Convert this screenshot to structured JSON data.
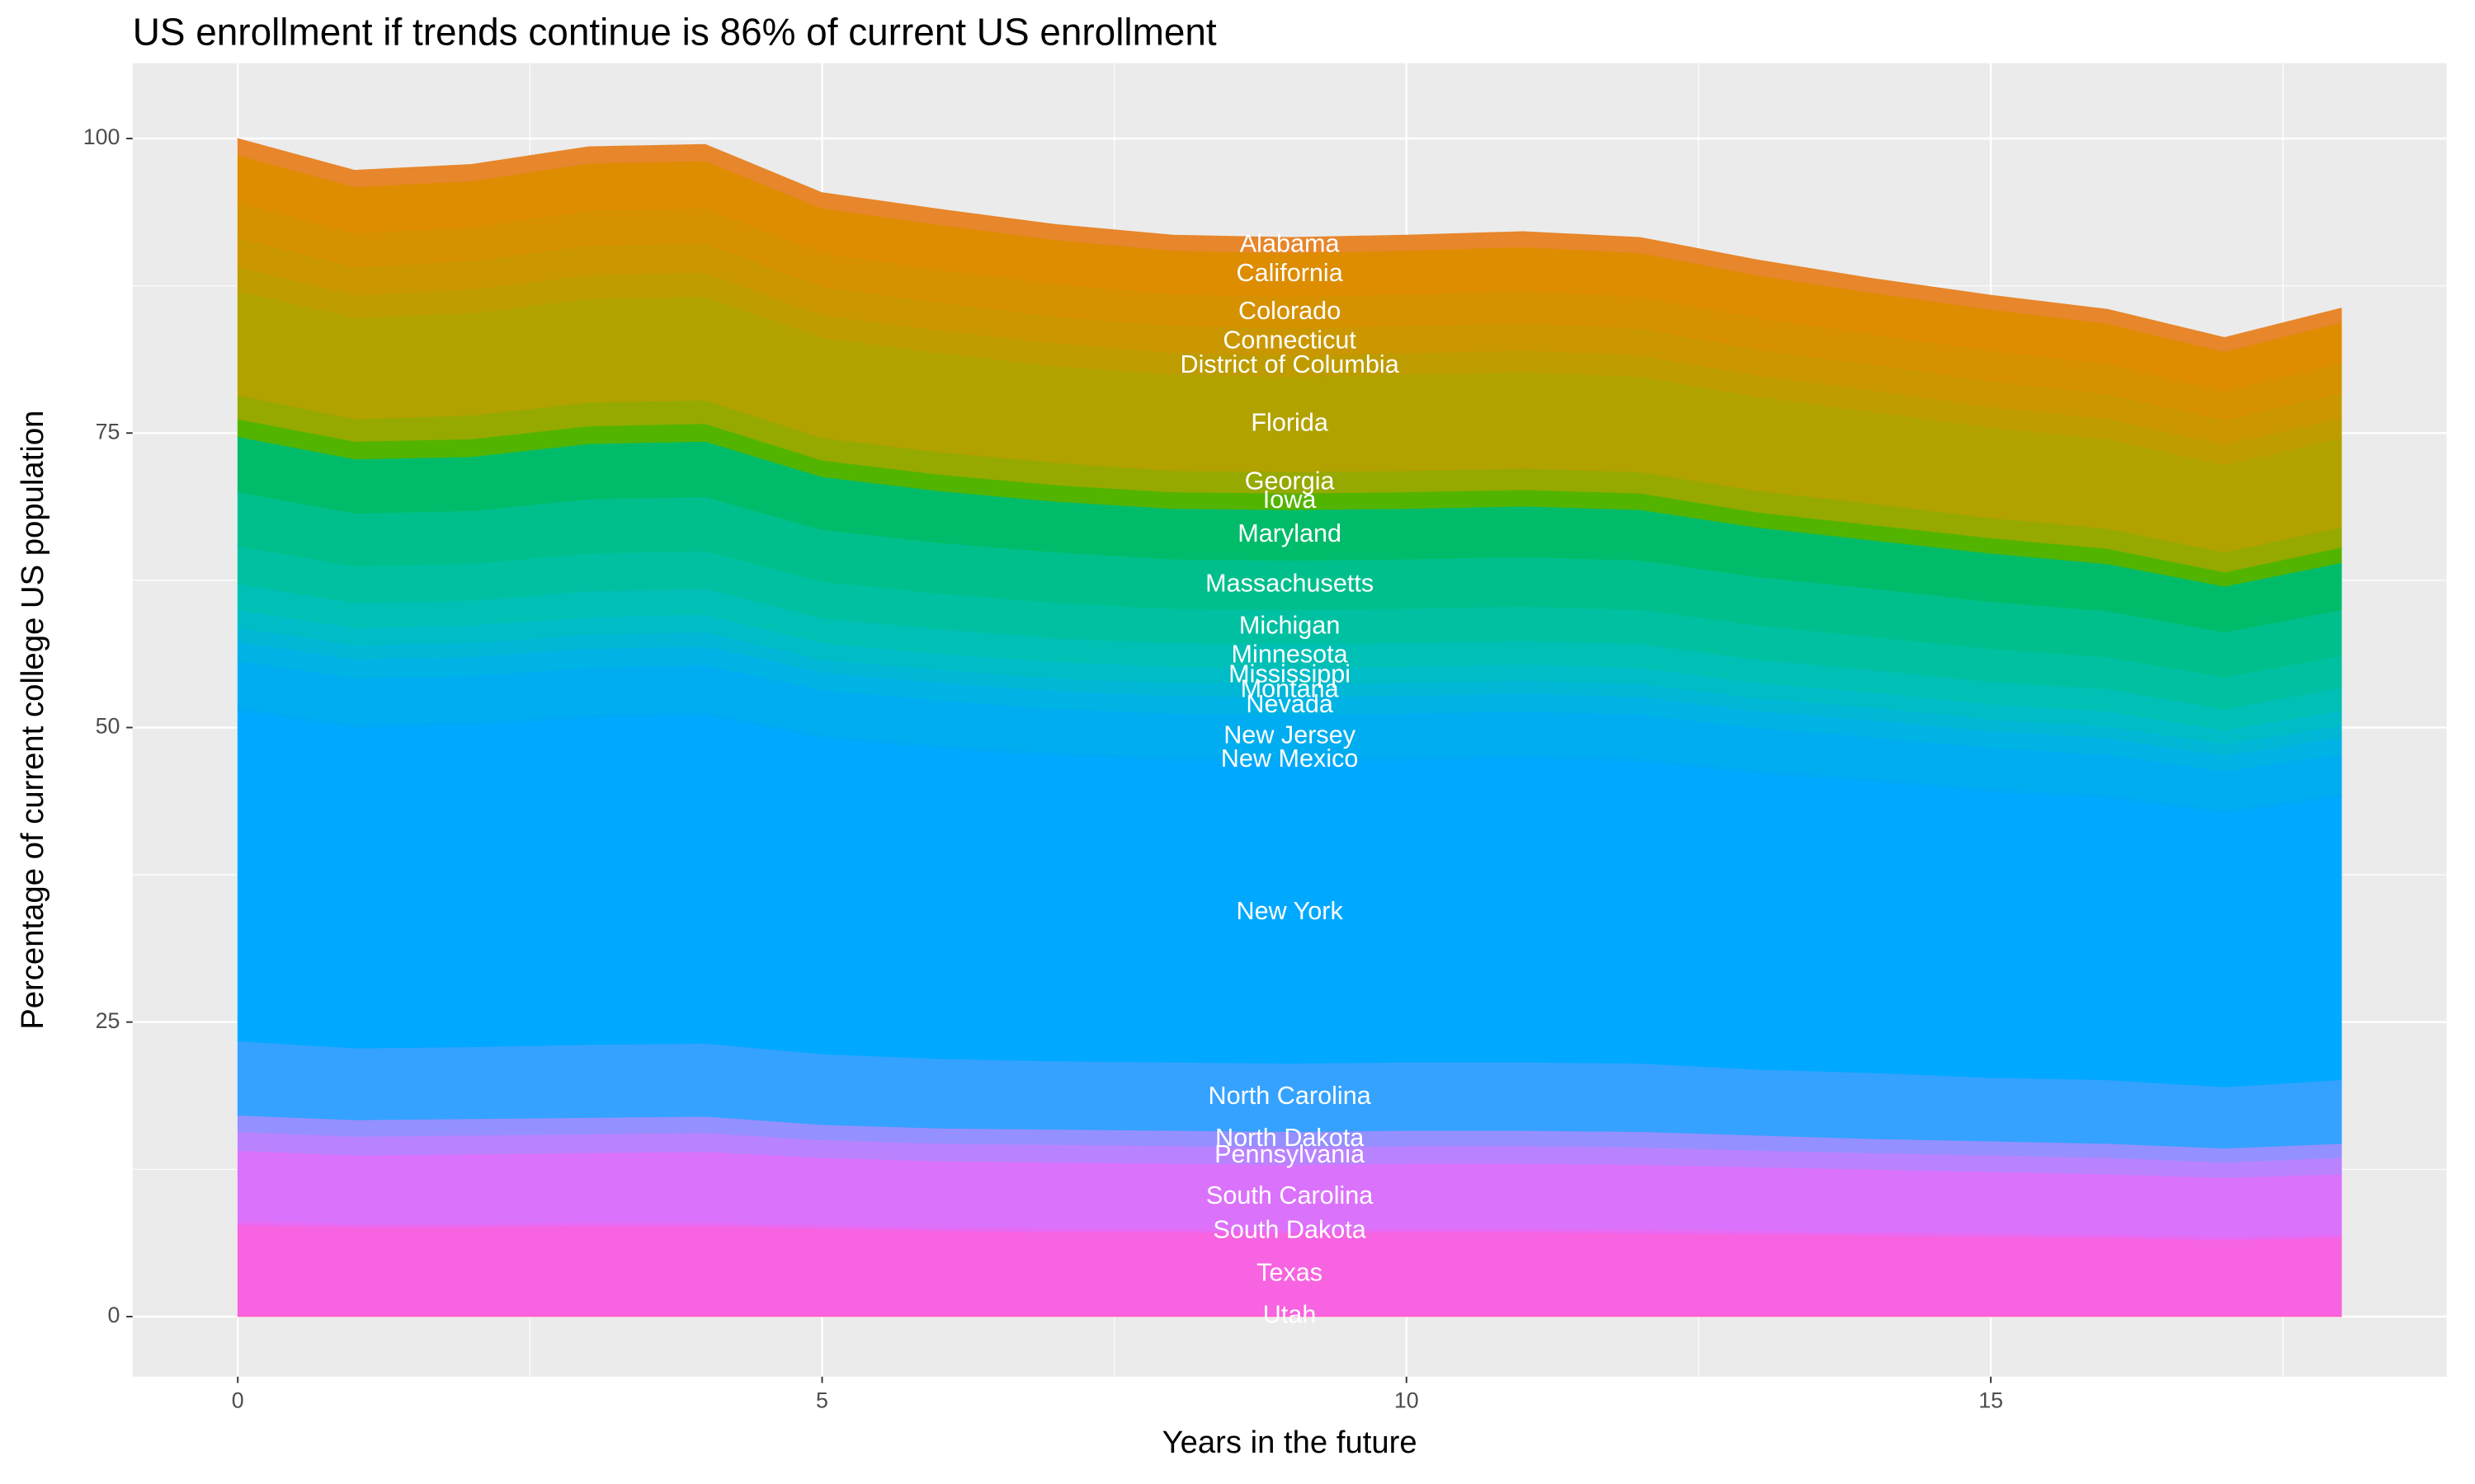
{
  "chart_data": {
    "type": "stacked_area",
    "title": "US enrollment if trends continue is 86% of current US enrollment",
    "x_label": "Years in the future",
    "y_label": "Percentage of current college US population",
    "x": [
      0,
      1,
      2,
      3,
      4,
      5,
      6,
      7,
      8,
      9,
      10,
      11,
      12,
      13,
      14,
      15,
      16,
      17,
      18
    ],
    "xlim": [
      -0.9,
      18.9
    ],
    "xticks": [
      0,
      5,
      10,
      15
    ],
    "ylim": [
      -5.1,
      106.4
    ],
    "yticks": [
      0,
      25,
      50,
      75,
      100
    ],
    "grid": true,
    "series": [
      {
        "name": "Utah",
        "color": "#FF62BC",
        "values": [
          0.1,
          0.1,
          0.1,
          0.1,
          0.1,
          0.1,
          0.1,
          0.1,
          0.1,
          0.1,
          0.1,
          0.1,
          0.1,
          0.1,
          0.1,
          0.1,
          0.1,
          0.1,
          0.1
        ]
      },
      {
        "name": "Texas",
        "color": "#F763E0",
        "values": [
          7.7,
          7.5,
          7.5,
          7.6,
          7.6,
          7.4,
          7.2,
          7.1,
          7.1,
          7.0,
          7.1,
          7.1,
          7.0,
          6.9,
          6.8,
          6.7,
          6.6,
          6.4,
          6.6
        ]
      },
      {
        "name": "South Dakota",
        "color": "#E76BF3",
        "values": [
          0.3,
          0.3,
          0.3,
          0.3,
          0.3,
          0.3,
          0.3,
          0.3,
          0.3,
          0.3,
          0.3,
          0.3,
          0.3,
          0.3,
          0.3,
          0.3,
          0.3,
          0.3,
          0.3
        ]
      },
      {
        "name": "South Carolina",
        "color": "#DB72FB",
        "values": [
          6.0,
          5.8,
          5.9,
          5.9,
          6.0,
          5.7,
          5.6,
          5.6,
          5.5,
          5.5,
          5.5,
          5.5,
          5.5,
          5.4,
          5.3,
          5.2,
          5.1,
          5.0,
          5.1
        ]
      },
      {
        "name": "Pennsylvania",
        "color": "#B983FF",
        "values": [
          1.6,
          1.6,
          1.6,
          1.6,
          1.6,
          1.5,
          1.5,
          1.5,
          1.5,
          1.5,
          1.5,
          1.5,
          1.5,
          1.4,
          1.4,
          1.4,
          1.4,
          1.3,
          1.4
        ]
      },
      {
        "name": "North Dakota",
        "color": "#9590FF",
        "values": [
          1.4,
          1.4,
          1.4,
          1.4,
          1.4,
          1.3,
          1.3,
          1.3,
          1.3,
          1.3,
          1.3,
          1.3,
          1.3,
          1.3,
          1.2,
          1.2,
          1.2,
          1.2,
          1.2
        ]
      },
      {
        "name": "North Carolina",
        "color": "#35A2FF",
        "values": [
          6.3,
          6.1,
          6.1,
          6.2,
          6.2,
          6.0,
          5.9,
          5.8,
          5.8,
          5.8,
          5.8,
          5.8,
          5.8,
          5.6,
          5.6,
          5.4,
          5.4,
          5.2,
          5.4
        ]
      },
      {
        "name": "New York",
        "color": "#00A9FF",
        "values": [
          28.0,
          27.2,
          27.3,
          27.7,
          27.8,
          26.8,
          26.3,
          25.9,
          25.6,
          25.6,
          25.6,
          25.8,
          25.6,
          25.1,
          24.7,
          24.2,
          23.9,
          23.2,
          24.0
        ]
      },
      {
        "name": "New Mexico",
        "color": "#00A8F6",
        "values": [
          0.3,
          0.3,
          0.3,
          0.3,
          0.3,
          0.3,
          0.3,
          0.3,
          0.3,
          0.3,
          0.3,
          0.3,
          0.3,
          0.3,
          0.3,
          0.3,
          0.3,
          0.3,
          0.3
        ]
      },
      {
        "name": "New Jersey",
        "color": "#00ADF0",
        "values": [
          4.0,
          3.9,
          3.9,
          4.0,
          4.0,
          3.8,
          3.8,
          3.7,
          3.7,
          3.7,
          3.7,
          3.7,
          3.7,
          3.6,
          3.5,
          3.5,
          3.4,
          3.3,
          3.4
        ]
      },
      {
        "name": "Nevada",
        "color": "#00B3E5",
        "values": [
          1.6,
          1.6,
          1.6,
          1.6,
          1.6,
          1.5,
          1.5,
          1.5,
          1.5,
          1.5,
          1.5,
          1.5,
          1.5,
          1.4,
          1.4,
          1.4,
          1.4,
          1.3,
          1.4
        ]
      },
      {
        "name": "Montana",
        "color": "#00B8D6",
        "values": [
          1.2,
          1.2,
          1.2,
          1.2,
          1.2,
          1.1,
          1.1,
          1.1,
          1.1,
          1.1,
          1.1,
          1.1,
          1.1,
          1.1,
          1.1,
          1.0,
          1.0,
          1.0,
          1.0
        ]
      },
      {
        "name": "Mississippi",
        "color": "#00BCC6",
        "values": [
          1.5,
          1.5,
          1.5,
          1.5,
          1.5,
          1.4,
          1.4,
          1.4,
          1.4,
          1.4,
          1.4,
          1.4,
          1.4,
          1.3,
          1.3,
          1.3,
          1.3,
          1.2,
          1.3
        ]
      },
      {
        "name": "Minnesota",
        "color": "#00BFB4",
        "values": [
          2.2,
          2.1,
          2.1,
          2.2,
          2.2,
          2.1,
          2.1,
          2.0,
          2.0,
          2.0,
          2.0,
          2.0,
          2.0,
          2.0,
          1.9,
          1.9,
          1.9,
          1.8,
          1.9
        ]
      },
      {
        "name": "Michigan",
        "color": "#00C0A2",
        "values": [
          3.2,
          3.1,
          3.1,
          3.2,
          3.2,
          3.1,
          3.0,
          3.0,
          2.9,
          2.9,
          2.9,
          2.9,
          2.9,
          2.9,
          2.8,
          2.8,
          2.7,
          2.7,
          2.7
        ]
      },
      {
        "name": "Massachusetts",
        "color": "#00BF8C",
        "values": [
          4.6,
          4.5,
          4.5,
          4.6,
          4.6,
          4.4,
          4.3,
          4.3,
          4.2,
          4.2,
          4.2,
          4.2,
          4.2,
          4.1,
          4.1,
          4.0,
          3.9,
          3.8,
          3.9
        ]
      },
      {
        "name": "Maryland",
        "color": "#00BC6A",
        "values": [
          4.7,
          4.6,
          4.6,
          4.7,
          4.7,
          4.5,
          4.4,
          4.3,
          4.3,
          4.3,
          4.3,
          4.3,
          4.3,
          4.2,
          4.1,
          4.1,
          4.0,
          3.9,
          4.0
        ]
      },
      {
        "name": "Iowa",
        "color": "#53B400",
        "values": [
          1.5,
          1.5,
          1.5,
          1.5,
          1.5,
          1.4,
          1.4,
          1.4,
          1.4,
          1.4,
          1.4,
          1.4,
          1.4,
          1.3,
          1.3,
          1.3,
          1.3,
          1.2,
          1.3
        ]
      },
      {
        "name": "Georgia",
        "color": "#96A900",
        "values": [
          2.0,
          1.9,
          2.0,
          2.0,
          2.0,
          1.9,
          1.9,
          1.9,
          1.8,
          1.8,
          1.8,
          1.8,
          1.8,
          1.8,
          1.8,
          1.7,
          1.7,
          1.7,
          1.7
        ]
      },
      {
        "name": "Florida",
        "color": "#B1A200",
        "values": [
          8.9,
          8.6,
          8.7,
          8.8,
          8.8,
          8.5,
          8.4,
          8.2,
          8.2,
          8.1,
          8.2,
          8.2,
          8.1,
          8.0,
          7.8,
          7.7,
          7.6,
          7.4,
          7.6
        ]
      },
      {
        "name": "District of Columbia",
        "color": "#BE9C00",
        "values": [
          2.0,
          1.9,
          2.0,
          2.0,
          2.0,
          1.9,
          1.9,
          1.9,
          1.8,
          1.8,
          1.8,
          1.8,
          1.8,
          1.8,
          1.8,
          1.7,
          1.7,
          1.7,
          1.7
        ]
      },
      {
        "name": "Connecticut",
        "color": "#CA9700",
        "values": [
          2.5,
          2.4,
          2.4,
          2.5,
          2.5,
          2.4,
          2.4,
          2.3,
          2.3,
          2.3,
          2.3,
          2.3,
          2.3,
          2.2,
          2.2,
          2.2,
          2.1,
          2.1,
          2.1
        ]
      },
      {
        "name": "Colorado",
        "color": "#D59100",
        "values": [
          3.0,
          2.9,
          2.9,
          3.0,
          3.0,
          2.9,
          2.8,
          2.8,
          2.7,
          2.7,
          2.7,
          2.8,
          2.7,
          2.7,
          2.6,
          2.6,
          2.6,
          2.5,
          2.6
        ]
      },
      {
        "name": "California",
        "color": "#DE8C00",
        "values": [
          4.0,
          3.9,
          3.9,
          4.0,
          4.0,
          3.8,
          3.8,
          3.7,
          3.7,
          3.7,
          3.7,
          3.7,
          3.7,
          3.6,
          3.5,
          3.5,
          3.4,
          3.3,
          3.4
        ]
      },
      {
        "name": "Alabama",
        "color": "#E7862B",
        "values": [
          1.4,
          1.4,
          1.4,
          1.4,
          1.4,
          1.3,
          1.3,
          1.3,
          1.3,
          1.3,
          1.3,
          1.3,
          1.3,
          1.3,
          1.2,
          1.2,
          1.2,
          1.2,
          1.2
        ]
      }
    ]
  }
}
